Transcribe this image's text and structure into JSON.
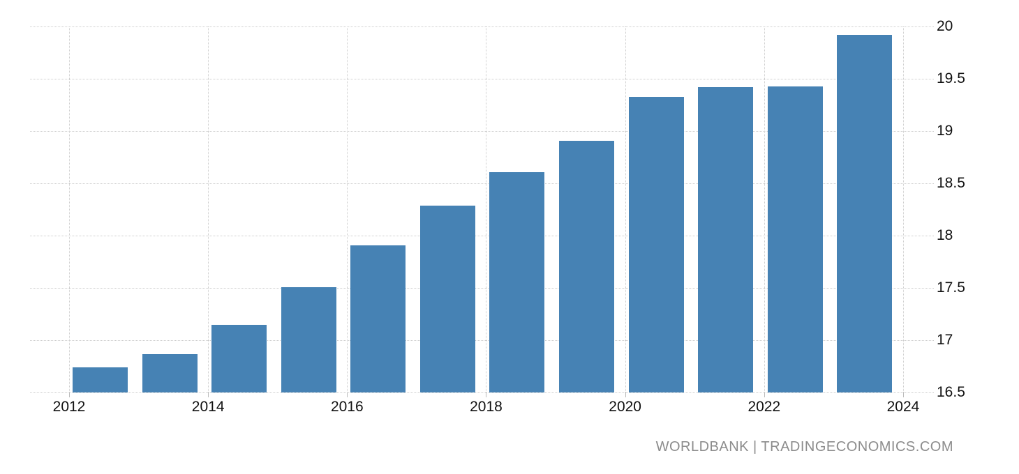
{
  "chart_data": {
    "type": "bar",
    "categories": [
      "2012",
      "2013",
      "2014",
      "2015",
      "2016",
      "2017",
      "2018",
      "2019",
      "2020",
      "2021",
      "2022",
      "2023"
    ],
    "values": [
      16.74,
      16.87,
      17.15,
      17.51,
      17.91,
      18.29,
      18.61,
      18.91,
      19.33,
      19.42,
      19.43,
      19.92
    ],
    "title": "",
    "xlabel": "",
    "ylabel": "",
    "ylim": [
      16.5,
      20
    ],
    "y_ticks": [
      16.5,
      17,
      17.5,
      18,
      18.5,
      19,
      19.5,
      20
    ],
    "x_tick_labels": [
      "2012",
      "2014",
      "2016",
      "2018",
      "2020",
      "2022",
      "2024"
    ],
    "x_axis_start_year": 2012,
    "grid": true,
    "legend_position": "none",
    "bar_color": "#4682b4",
    "gridline_color": "#cccccc",
    "tick_color": "#bbbbbb",
    "axis_label_color": "#111111"
  },
  "watermark": {
    "text": "WORLDBANK | TRADINGECONOMICS.COM",
    "color": "#8c8c8c"
  }
}
